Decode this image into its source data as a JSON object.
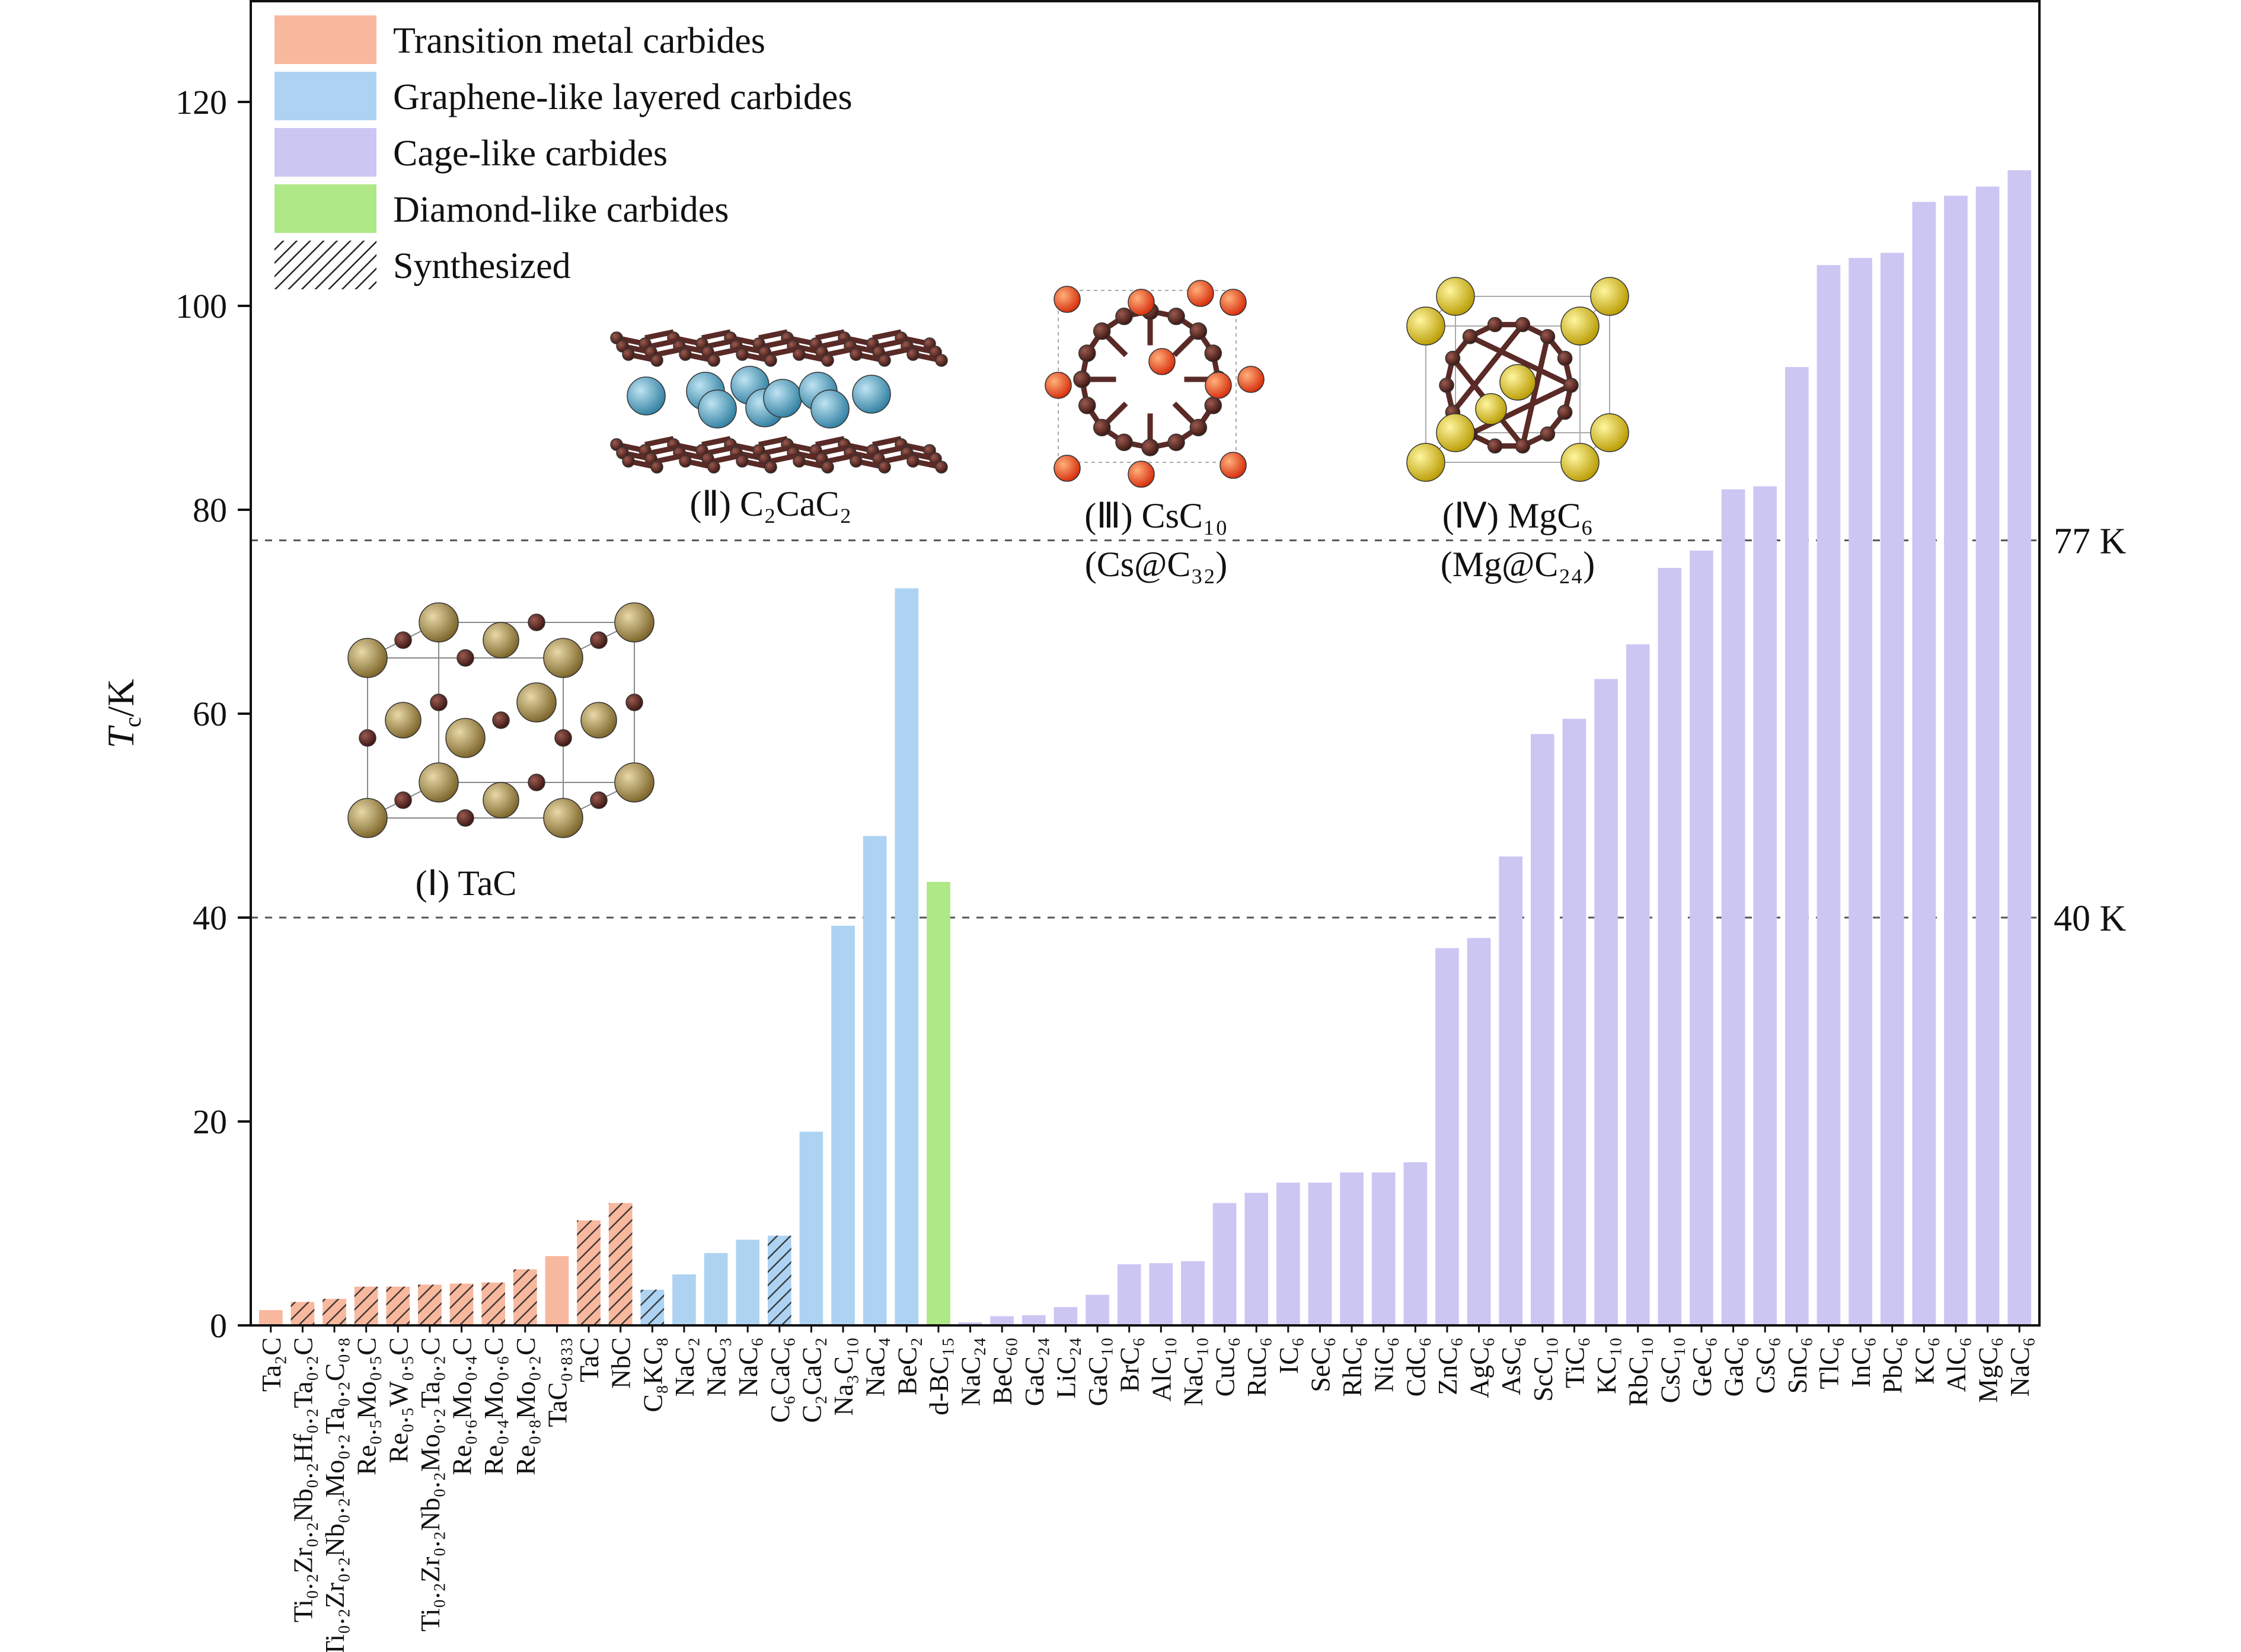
{
  "chart_data": {
    "type": "bar",
    "ylabel": "T_c/K",
    "ylabel_main": "T",
    "ylabel_sub": "c",
    "ylabel_unit": "/K",
    "ylim": [
      0,
      130
    ],
    "yticks": [
      0,
      20,
      40,
      60,
      80,
      100,
      120
    ],
    "grid": false,
    "legend_position": "top-left",
    "colors": {
      "transition": "#f8b89e",
      "graphene": "#aed3f2",
      "cage": "#ccc6f3",
      "diamond": "#aee887"
    },
    "legend": [
      {
        "label": "Transition metal carbides",
        "key": "transition"
      },
      {
        "label": "Graphene-like layered carbides",
        "key": "graphene"
      },
      {
        "label": "Cage-like carbides",
        "key": "cage"
      },
      {
        "label": "Diamond-like carbides",
        "key": "diamond"
      },
      {
        "label": "Synthesized",
        "key": "hatch"
      }
    ],
    "reference_lines": [
      {
        "value": 77,
        "label": "77 K"
      },
      {
        "value": 40,
        "label": "40 K"
      }
    ],
    "bars": [
      {
        "label": "Ta₂C",
        "value": 1.5,
        "group": "transition",
        "synthesized": false
      },
      {
        "label": "Ti₀.₂Zr₀.₂Nb₀.₂Hf₀.₂Ta₀.₂C",
        "value": 2.3,
        "group": "transition",
        "synthesized": true
      },
      {
        "label": "Ti₀.₂Zr₀.₂Nb₀.₂Mo₀.₂Ta₀.₂C₀.₈",
        "value": 2.6,
        "group": "transition",
        "synthesized": true
      },
      {
        "label": "Re₀.₅Mo₀.₅C",
        "value": 3.8,
        "group": "transition",
        "synthesized": true
      },
      {
        "label": "Re₀.₅W₀.₅C",
        "value": 3.8,
        "group": "transition",
        "synthesized": true
      },
      {
        "label": "Ti₀.₂Zr₀.₂Nb₀.₂Mo₀.₂Ta₀.₂C",
        "value": 4.0,
        "group": "transition",
        "synthesized": true
      },
      {
        "label": "Re₀.₆Mo₀.₄C",
        "value": 4.1,
        "group": "transition",
        "synthesized": true
      },
      {
        "label": "Re₀.₄Mo₀.₆C",
        "value": 4.2,
        "group": "transition",
        "synthesized": true
      },
      {
        "label": "Re₀.₈Mo₀.₂C",
        "value": 5.5,
        "group": "transition",
        "synthesized": true
      },
      {
        "label": "TaC₀.₈₃₃",
        "value": 6.8,
        "group": "transition",
        "synthesized": false
      },
      {
        "label": "TaC",
        "value": 10.3,
        "group": "transition",
        "synthesized": true
      },
      {
        "label": "NbC",
        "value": 12.0,
        "group": "transition",
        "synthesized": true
      },
      {
        "label": "C₈KC₈",
        "value": 3.5,
        "group": "graphene",
        "synthesized": true
      },
      {
        "label": "NaC₂",
        "value": 5.0,
        "group": "graphene",
        "synthesized": false
      },
      {
        "label": "NaC₃",
        "value": 7.1,
        "group": "graphene",
        "synthesized": false
      },
      {
        "label": "NaC₆",
        "value": 8.4,
        "group": "graphene",
        "synthesized": false
      },
      {
        "label": "C₆CaC₆",
        "value": 8.8,
        "group": "graphene",
        "synthesized": true
      },
      {
        "label": "C₂CaC₂",
        "value": 19.0,
        "group": "graphene",
        "synthesized": false
      },
      {
        "label": "Na₃C₁₀",
        "value": 39.2,
        "group": "graphene",
        "synthesized": false
      },
      {
        "label": "NaC₄",
        "value": 48.0,
        "group": "graphene",
        "synthesized": false
      },
      {
        "label": "BeC₂",
        "value": 72.3,
        "group": "graphene",
        "synthesized": false
      },
      {
        "label": "d-BC₁₅",
        "value": 43.5,
        "group": "diamond",
        "synthesized": false
      },
      {
        "label": "NaC₂₄",
        "value": 0.3,
        "group": "cage",
        "synthesized": false
      },
      {
        "label": "BeC₆₀",
        "value": 0.9,
        "group": "cage",
        "synthesized": false
      },
      {
        "label": "GaC₂₄",
        "value": 1.0,
        "group": "cage",
        "synthesized": false
      },
      {
        "label": "LiC₂₄",
        "value": 1.8,
        "group": "cage",
        "synthesized": false
      },
      {
        "label": "GaC₁₀",
        "value": 3.0,
        "group": "cage",
        "synthesized": false
      },
      {
        "label": "BrC₆",
        "value": 6.0,
        "group": "cage",
        "synthesized": false
      },
      {
        "label": "AlC₁₀",
        "value": 6.1,
        "group": "cage",
        "synthesized": false
      },
      {
        "label": "NaC₁₀",
        "value": 6.3,
        "group": "cage",
        "synthesized": false
      },
      {
        "label": "CuC₆",
        "value": 12.0,
        "group": "cage",
        "synthesized": false
      },
      {
        "label": "RuC₆",
        "value": 13.0,
        "group": "cage",
        "synthesized": false
      },
      {
        "label": "IC₆",
        "value": 14.0,
        "group": "cage",
        "synthesized": false
      },
      {
        "label": "SeC₆",
        "value": 14.0,
        "group": "cage",
        "synthesized": false
      },
      {
        "label": "RhC₆",
        "value": 15.0,
        "group": "cage",
        "synthesized": false
      },
      {
        "label": "NiC₆",
        "value": 15.0,
        "group": "cage",
        "synthesized": false
      },
      {
        "label": "CdC₆",
        "value": 16.0,
        "group": "cage",
        "synthesized": false
      },
      {
        "label": "ZnC₆",
        "value": 37.0,
        "group": "cage",
        "synthesized": false
      },
      {
        "label": "AgC₆",
        "value": 38.0,
        "group": "cage",
        "synthesized": false
      },
      {
        "label": "AsC₆",
        "value": 46.0,
        "group": "cage",
        "synthesized": false
      },
      {
        "label": "ScC₁₀",
        "value": 58.0,
        "group": "cage",
        "synthesized": false
      },
      {
        "label": "TiC₆",
        "value": 59.5,
        "group": "cage",
        "synthesized": false
      },
      {
        "label": "KC₁₀",
        "value": 63.4,
        "group": "cage",
        "synthesized": false
      },
      {
        "label": "RbC₁₀",
        "value": 66.8,
        "group": "cage",
        "synthesized": false
      },
      {
        "label": "CsC₁₀",
        "value": 74.3,
        "group": "cage",
        "synthesized": false
      },
      {
        "label": "GeC₆",
        "value": 76.0,
        "group": "cage",
        "synthesized": false
      },
      {
        "label": "GaC₆",
        "value": 82.0,
        "group": "cage",
        "synthesized": false
      },
      {
        "label": "CsC₆",
        "value": 82.3,
        "group": "cage",
        "synthesized": false
      },
      {
        "label": "SnC₆",
        "value": 94.0,
        "group": "cage",
        "synthesized": false
      },
      {
        "label": "TlC₆",
        "value": 104.0,
        "group": "cage",
        "synthesized": false
      },
      {
        "label": "InC₆",
        "value": 104.7,
        "group": "cage",
        "synthesized": false
      },
      {
        "label": "PbC₆",
        "value": 105.2,
        "group": "cage",
        "synthesized": false
      },
      {
        "label": "KC₆",
        "value": 110.2,
        "group": "cage",
        "synthesized": false
      },
      {
        "label": "AlC₆",
        "value": 110.8,
        "group": "cage",
        "synthesized": false
      },
      {
        "label": "MgC₆",
        "value": 111.7,
        "group": "cage",
        "synthesized": false
      },
      {
        "label": "NaC₆",
        "value": 113.3,
        "group": "cage",
        "synthesized": false
      }
    ],
    "structures": [
      {
        "id": "tac",
        "label": "(Ⅰ) TaC",
        "sublabel": ""
      },
      {
        "id": "c2cac2",
        "label": "(Ⅱ) C₂CaC₂",
        "sublabel": ""
      },
      {
        "id": "csc10",
        "label": "(Ⅲ) CsC₁₀",
        "sublabel": "(Cs@C₃₂)"
      },
      {
        "id": "mgc6",
        "label": "(Ⅳ) MgC₆",
        "sublabel": "(Mg@C₂₄)"
      }
    ]
  }
}
